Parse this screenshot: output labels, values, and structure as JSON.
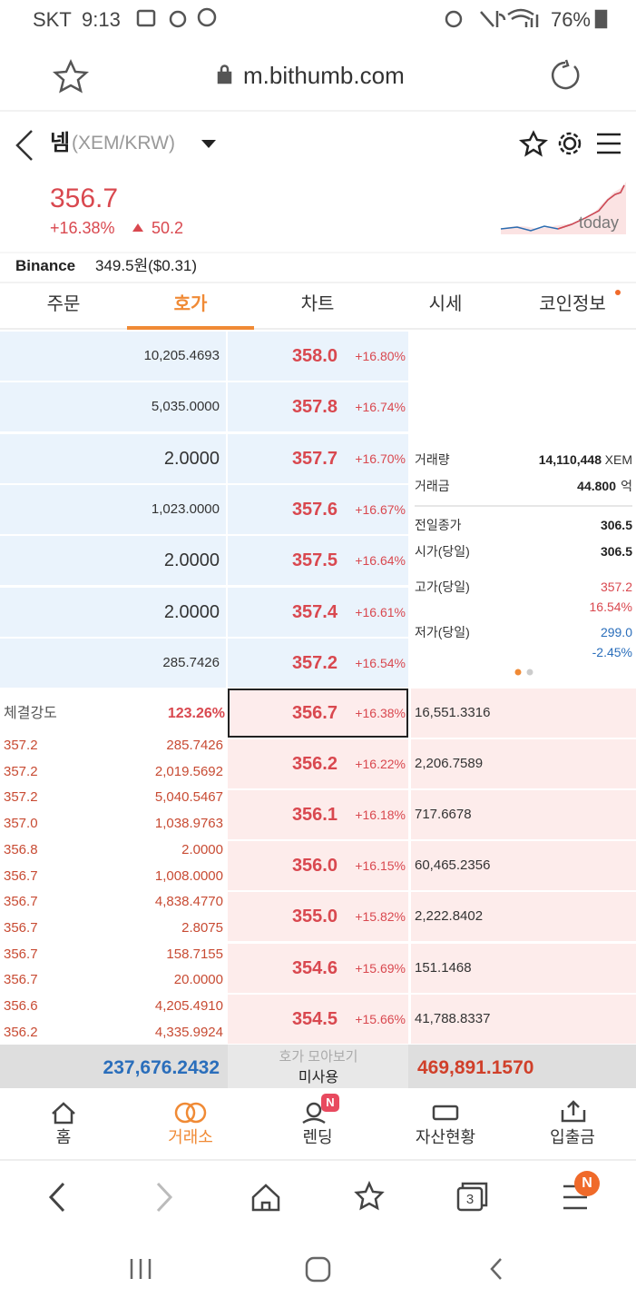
{
  "status_bar": {
    "carrier": "SKT",
    "time": "9:13",
    "battery": "76%"
  },
  "browser": {
    "url": "m.bithumb.com",
    "tab_count": "3",
    "menu_badge": "N"
  },
  "header": {
    "coin": "넴",
    "pair": "(XEM/KRW)"
  },
  "ticker": {
    "price": "356.7",
    "change_rate": "+16.38%",
    "change": "50.2",
    "chart_label": "today"
  },
  "reference": {
    "exchange": "Binance",
    "price": "349.5원($0.31)"
  },
  "tabs": [
    "주문",
    "호가",
    "차트",
    "시세",
    "코인정보"
  ],
  "asks": [
    {
      "quantity": "10,205.4693",
      "price": "358.0",
      "rate": "+16.80%"
    },
    {
      "quantity": "5,035.0000",
      "price": "357.8",
      "rate": "+16.74%"
    },
    {
      "quantity": "2.0000",
      "price": "357.7",
      "rate": "+16.70%"
    },
    {
      "quantity": "1,023.0000",
      "price": "357.6",
      "rate": "+16.67%"
    },
    {
      "quantity": "2.0000",
      "price": "357.5",
      "rate": "+16.64%"
    },
    {
      "quantity": "2.0000",
      "price": "357.4",
      "rate": "+16.61%"
    },
    {
      "quantity": "285.7426",
      "price": "357.2",
      "rate": "+16.54%"
    }
  ],
  "stats": [
    {
      "label": "거래량",
      "value": "14,110,448",
      "unit": "XEM"
    },
    {
      "label": "거래금",
      "value": "44.800",
      "unit": "억"
    },
    {
      "label": "전일종가",
      "value": "306.5"
    },
    {
      "label": "시가(당일)",
      "value": "306.5"
    },
    {
      "label": "고가(당일)",
      "value": "357.2",
      "rate": "16.54%"
    },
    {
      "label": "저가(당일)",
      "value": "299.0",
      "rate": "-2.45%"
    }
  ],
  "trade_strength": {
    "label": "체결강도",
    "value": "123.26%"
  },
  "trades": [
    [
      "357.2",
      "285.7426"
    ],
    [
      "357.2",
      "2,019.5692"
    ],
    [
      "357.2",
      "5,040.5467"
    ],
    [
      "357.0",
      "1,038.9763"
    ],
    [
      "356.8",
      "2.0000"
    ],
    [
      "356.7",
      "1,008.0000"
    ],
    [
      "356.7",
      "4,838.4770"
    ],
    [
      "356.7",
      "2.8075"
    ],
    [
      "356.7",
      "158.7155"
    ],
    [
      "356.7",
      "20.0000"
    ],
    [
      "356.6",
      "4,205.4910"
    ],
    [
      "356.2",
      "4,335.9924"
    ]
  ],
  "bids": [
    {
      "price": "356.7",
      "rate": "+16.38%",
      "quantity": "16,551.3316"
    },
    {
      "price": "356.2",
      "rate": "+16.22%",
      "quantity": "2,206.7589"
    },
    {
      "price": "356.1",
      "rate": "+16.18%",
      "quantity": "717.6678"
    },
    {
      "price": "356.0",
      "rate": "+16.15%",
      "quantity": "60,465.2356"
    },
    {
      "price": "355.0",
      "rate": "+15.82%",
      "quantity": "2,222.8402"
    },
    {
      "price": "354.6",
      "rate": "+15.69%",
      "quantity": "151.1468"
    },
    {
      "price": "354.5",
      "rate": "+15.66%",
      "quantity": "41,788.8337"
    }
  ],
  "footer": {
    "ask_total": "237,676.2432",
    "grouping_label": "호가 모아보기",
    "grouping_value": "미사용",
    "bid_total": "469,891.1570"
  },
  "bottom_nav": [
    {
      "label": "홈"
    },
    {
      "label": "거래소"
    },
    {
      "label": "렌딩",
      "badge": "N"
    },
    {
      "label": "자산현황"
    },
    {
      "label": "입출금"
    }
  ]
}
